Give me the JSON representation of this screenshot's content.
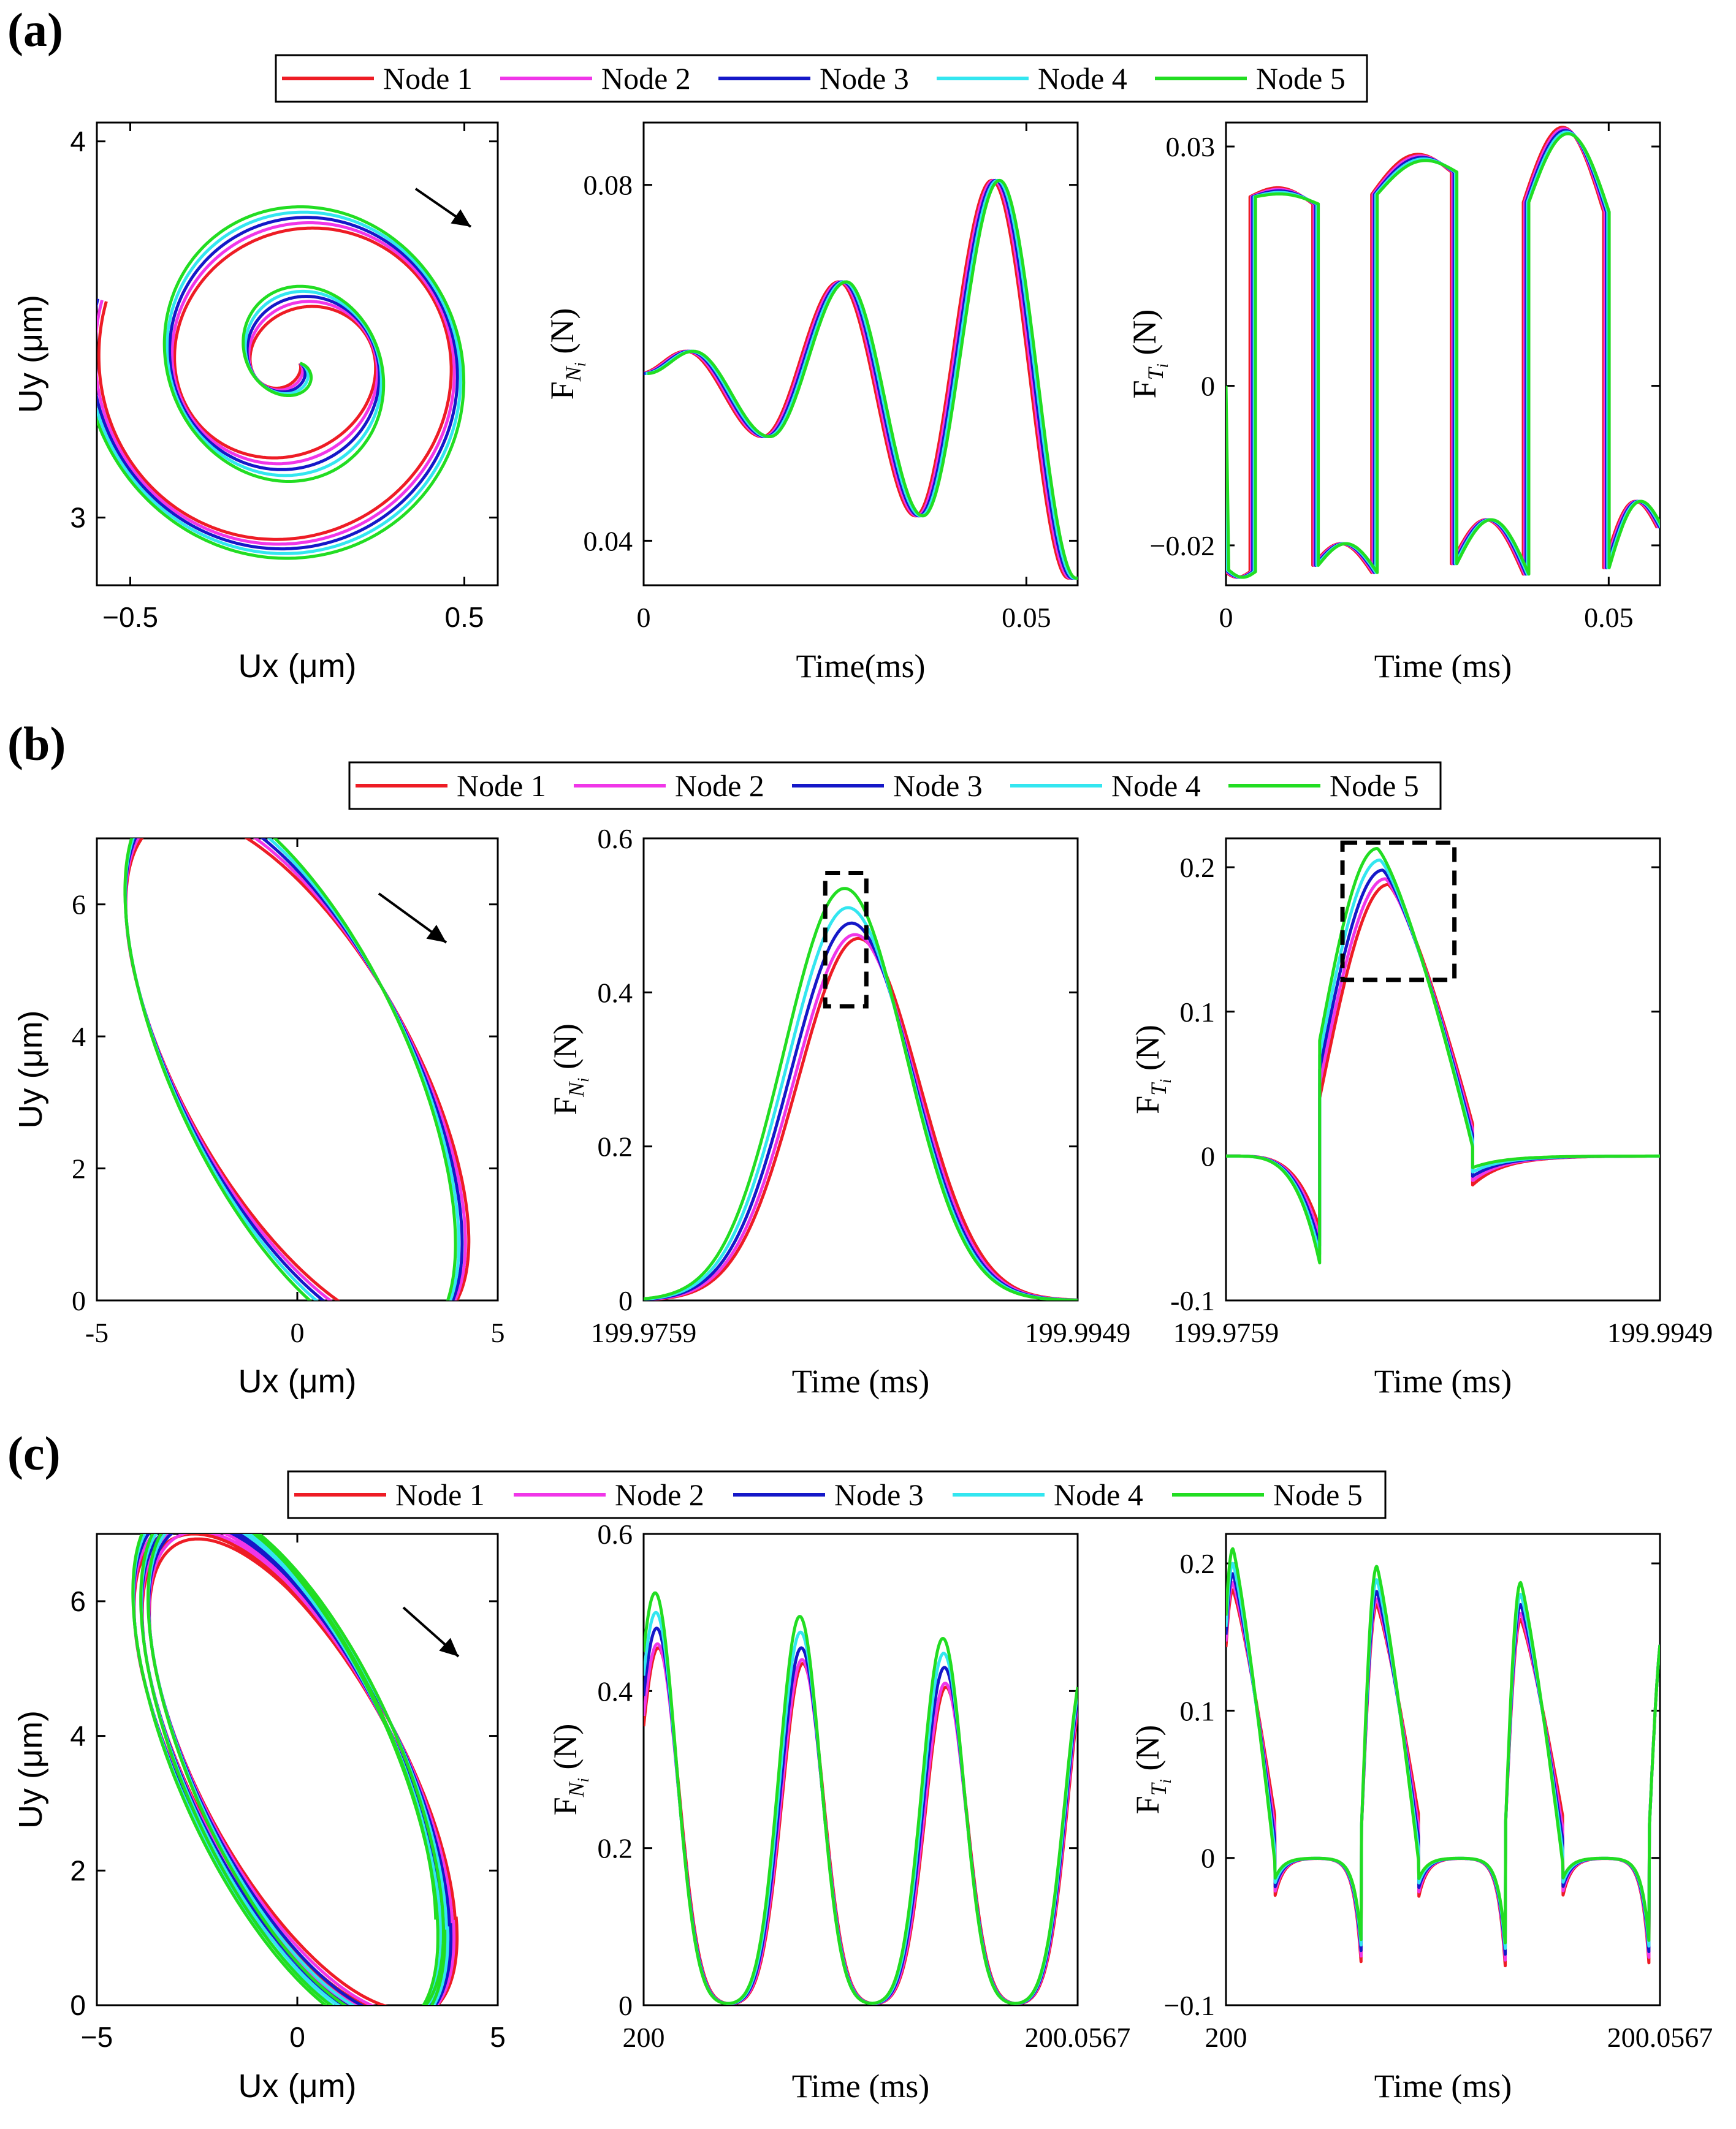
{
  "colors": {
    "Node 1": "#ee1c25",
    "Node 2": "#f036e8",
    "Node 3": "#1518c8",
    "Node 4": "#33e6f0",
    "Node 5": "#22dd22",
    "axis": "#000000",
    "background": "#ffffff"
  },
  "panels": [
    {
      "letter": "(a)",
      "legend": [
        "Node 1",
        "Node 2",
        "Node 3",
        "Node 4",
        "Node 5"
      ],
      "charts": [
        {
          "kind": "orbit",
          "xlabel": "Ux (μm)",
          "ylabel": "Uy (μm)",
          "xticks": [
            "−0.5",
            "0.5"
          ],
          "yticks": [
            "3",
            "4"
          ],
          "arrow": true
        },
        {
          "kind": "time",
          "xlabel": "Time(ms)",
          "ylabel": "F_Ni (N)",
          "xticks": [
            "0",
            "0.05"
          ],
          "yticks": [
            "0.04",
            "0.08"
          ]
        },
        {
          "kind": "time",
          "xlabel": "Time (ms)",
          "ylabel": "F_Ti (N)",
          "xticks": [
            "0",
            "0.05"
          ],
          "yticks": [
            "−0.02",
            "0",
            "0.03"
          ]
        }
      ]
    },
    {
      "letter": "(b)",
      "legend": [
        "Node 1",
        "Node 2",
        "Node 3",
        "Node 4",
        "Node 5"
      ],
      "charts": [
        {
          "kind": "orbit",
          "xlabel": "Ux (μm)",
          "ylabel": "Uy (μm)",
          "xticks": [
            "-5",
            "0",
            "5"
          ],
          "yticks": [
            "0",
            "2",
            "4",
            "6"
          ],
          "arrow": true
        },
        {
          "kind": "time",
          "xlabel": "Time (ms)",
          "ylabel": "F_Ni (N)",
          "xticks": [
            "199.9759",
            "199.9949"
          ],
          "yticks": [
            "0",
            "0.2",
            "0.4",
            "0.6"
          ],
          "box": true
        },
        {
          "kind": "time",
          "xlabel": "Time (ms)",
          "ylabel": "F_Ti (N)",
          "xticks": [
            "199.9759",
            "199.9949"
          ],
          "yticks": [
            "-0.1",
            "0",
            "0.1",
            "0.2"
          ],
          "box": true
        }
      ]
    },
    {
      "letter": "(c)",
      "legend": [
        "Node 1",
        "Node 2",
        "Node 3",
        "Node 4",
        "Node 5"
      ],
      "charts": [
        {
          "kind": "orbit",
          "xlabel": "Ux (μm)",
          "ylabel": "Uy (μm)",
          "xticks": [
            "−5",
            "0",
            "5"
          ],
          "yticks": [
            "0",
            "2",
            "4",
            "6"
          ],
          "arrow": true
        },
        {
          "kind": "time",
          "xlabel": "Time (ms)",
          "ylabel": "F_Ni (N)",
          "xticks": [
            "200",
            "200.0567"
          ],
          "yticks": [
            "0",
            "0.2",
            "0.4",
            "0.6"
          ]
        },
        {
          "kind": "time",
          "xlabel": "Time (ms)",
          "ylabel": "F_Ti (N)",
          "xticks": [
            "200",
            "200.0567"
          ],
          "yticks": [
            "−0.1",
            "0",
            "0.1",
            "0.2"
          ]
        }
      ]
    }
  ],
  "chart_data": [
    {
      "id": "a-orbit",
      "type": "line",
      "xlabel": "Ux (μm)",
      "ylabel": "Uy (μm)",
      "xlim": [
        -0.5,
        0.5
      ],
      "ylim": [
        2.82,
        4.0
      ],
      "series": [
        {
          "name": "Node 1",
          "center": [
            -0.01,
            3.4
          ],
          "r_start": 0.01,
          "r_end": 0.58,
          "turns": 2.5
        },
        {
          "name": "Node 2",
          "center": [
            -0.01,
            3.4
          ],
          "r_start": 0.01,
          "r_end": 0.58,
          "turns": 2.5
        },
        {
          "name": "Node 3",
          "center": [
            -0.01,
            3.4
          ],
          "r_start": 0.01,
          "r_end": 0.58,
          "turns": 2.5
        },
        {
          "name": "Node 4",
          "center": [
            -0.01,
            3.4
          ],
          "r_start": 0.01,
          "r_end": 0.58,
          "turns": 2.5
        },
        {
          "name": "Node 5",
          "center": [
            -0.01,
            3.4
          ],
          "r_start": 0.01,
          "r_end": 0.58,
          "turns": 2.5
        }
      ]
    },
    {
      "id": "a-fn",
      "type": "line",
      "xlabel": "Time(ms)",
      "ylabel": "F_Ni (N)",
      "xlim": [
        0,
        0.0567
      ],
      "ylim": [
        0.035,
        0.087
      ],
      "series": [
        {
          "name": "Node 1",
          "t": [
            0,
            0.006,
            0.016,
            0.026,
            0.036,
            0.046,
            0.056
          ],
          "peaks": [
            0.0588,
            0.0613,
            0.0517,
            0.0691,
            0.0428,
            0.0805,
            0.0358
          ]
        },
        {
          "name": "Node 2",
          "t": [
            0,
            0.006,
            0.016,
            0.026,
            0.036,
            0.046,
            0.056
          ],
          "peaks": [
            0.0588,
            0.0613,
            0.0517,
            0.0691,
            0.0428,
            0.0805,
            0.0358
          ]
        },
        {
          "name": "Node 3",
          "t": [
            0,
            0.006,
            0.016,
            0.026,
            0.036,
            0.046,
            0.056
          ],
          "peaks": [
            0.0588,
            0.0613,
            0.0517,
            0.0691,
            0.0428,
            0.0805,
            0.0358
          ]
        },
        {
          "name": "Node 4",
          "t": [
            0,
            0.006,
            0.016,
            0.026,
            0.036,
            0.046,
            0.056
          ],
          "peaks": [
            0.0588,
            0.0613,
            0.0517,
            0.0691,
            0.0428,
            0.0805,
            0.0358
          ]
        },
        {
          "name": "Node 5",
          "t": [
            0,
            0.006,
            0.016,
            0.026,
            0.036,
            0.046,
            0.056
          ],
          "peaks": [
            0.0588,
            0.0613,
            0.0517,
            0.0691,
            0.0428,
            0.0805,
            0.0358
          ]
        }
      ]
    },
    {
      "id": "a-ft",
      "type": "line",
      "xlabel": "Time (ms)",
      "ylabel": "F_Ti (N)",
      "xlim": [
        0,
        0.0567
      ],
      "ylim": [
        -0.025,
        0.033
      ],
      "series": [
        {
          "name": "Node 1"
        },
        {
          "name": "Node 2"
        },
        {
          "name": "Node 3"
        },
        {
          "name": "Node 4"
        },
        {
          "name": "Node 5"
        }
      ]
    },
    {
      "id": "b-orbit",
      "type": "line",
      "xlabel": "Ux (μm)",
      "ylabel": "Uy (μm)",
      "xlim": [
        -5,
        5
      ],
      "ylim": [
        0,
        7
      ],
      "series": [
        {
          "name": "Node 1",
          "ellipse_top": 6.5,
          "ellipse_bottom": 0.3
        },
        {
          "name": "Node 2",
          "ellipse_top": 6.55,
          "ellipse_bottom": 0.3
        },
        {
          "name": "Node 3",
          "ellipse_top": 6.6,
          "ellipse_bottom": 0.32
        },
        {
          "name": "Node 4",
          "ellipse_top": 6.65,
          "ellipse_bottom": 0.33
        },
        {
          "name": "Node 5",
          "ellipse_top": 6.7,
          "ellipse_bottom": 0.35
        }
      ]
    },
    {
      "id": "b-fn",
      "type": "line",
      "xlabel": "Time (ms)",
      "ylabel": "F_Ni (N)",
      "xlim": [
        199.9759,
        199.9949
      ],
      "ylim": [
        0,
        0.6
      ],
      "series": [
        {
          "name": "Node 1",
          "peak_t": 199.9853,
          "peak": 0.47
        },
        {
          "name": "Node 2",
          "peak_t": 199.98515,
          "peak": 0.475
        },
        {
          "name": "Node 3",
          "peak_t": 199.985,
          "peak": 0.49
        },
        {
          "name": "Node 4",
          "peak_t": 199.98485,
          "peak": 0.51
        },
        {
          "name": "Node 5",
          "peak_t": 199.9847,
          "peak": 0.535
        }
      ]
    },
    {
      "id": "b-ft",
      "type": "line",
      "xlabel": "Time (ms)",
      "ylabel": "F_Ti (N)",
      "xlim": [
        199.9759,
        199.9949
      ],
      "ylim": [
        -0.1,
        0.22
      ],
      "series": [
        {
          "name": "Node 1",
          "peak": 0.188
        },
        {
          "name": "Node 2",
          "peak": 0.192
        },
        {
          "name": "Node 3",
          "peak": 0.198
        },
        {
          "name": "Node 4",
          "peak": 0.205
        },
        {
          "name": "Node 5",
          "peak": 0.213
        }
      ]
    },
    {
      "id": "c-orbit",
      "type": "line",
      "xlabel": "Ux (μm)",
      "ylabel": "Uy (μm)",
      "xlim": [
        -5,
        5
      ],
      "ylim": [
        0,
        7
      ],
      "series": [
        {
          "name": "Node 1"
        },
        {
          "name": "Node 2"
        },
        {
          "name": "Node 3"
        },
        {
          "name": "Node 4"
        },
        {
          "name": "Node 5"
        }
      ]
    },
    {
      "id": "c-fn",
      "type": "line",
      "xlabel": "Time (ms)",
      "ylabel": "F_Ni (N)",
      "xlim": [
        200,
        200.0567
      ],
      "ylim": [
        0,
        0.6
      ],
      "series": [
        {
          "name": "Node 1",
          "peaks": [
            0.455,
            0.435,
            0.405
          ]
        },
        {
          "name": "Node 2",
          "peaks": [
            0.46,
            0.44,
            0.41
          ]
        },
        {
          "name": "Node 3",
          "peaks": [
            0.48,
            0.455,
            0.43
          ]
        },
        {
          "name": "Node 4",
          "peaks": [
            0.5,
            0.475,
            0.448
          ]
        },
        {
          "name": "Node 5",
          "peaks": [
            0.525,
            0.495,
            0.467
          ]
        }
      ]
    },
    {
      "id": "c-ft",
      "type": "line",
      "xlabel": "Time (ms)",
      "ylabel": "F_Ti (N)",
      "xlim": [
        200,
        200.0567
      ],
      "ylim": [
        -0.1,
        0.22
      ],
      "series": [
        {
          "name": "Node 1",
          "peaks": [
            0.182,
            0.172,
            0.162
          ]
        },
        {
          "name": "Node 2",
          "peaks": [
            0.187,
            0.176,
            0.166
          ]
        },
        {
          "name": "Node 3",
          "peaks": [
            0.193,
            0.181,
            0.172
          ]
        },
        {
          "name": "Node 4",
          "peaks": [
            0.2,
            0.189,
            0.179
          ]
        },
        {
          "name": "Node 5",
          "peaks": [
            0.21,
            0.198,
            0.187
          ]
        }
      ]
    }
  ]
}
